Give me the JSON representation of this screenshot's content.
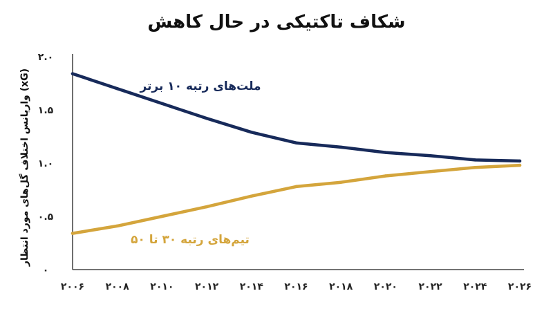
{
  "chart_data": {
    "type": "line",
    "title": "شکاف تاکتیکی در حال کاهش",
    "xlabel": "",
    "ylabel": "واریانس اختلاف گل‌های مورد انتظار (xG)",
    "x": [
      2006,
      2008,
      2010,
      2012,
      2014,
      2016,
      2018,
      2020,
      2022,
      2024,
      2026
    ],
    "x_tick_labels": [
      "۲۰۰۶",
      "۲۰۰۸",
      "۲۰۱۰",
      "۲۰۱۲",
      "۲۰۱۴",
      "۲۰۱۶",
      "۲۰۱۸",
      "۲۰۲۰",
      "۲۰۲۲",
      "۲۰۲۴",
      "۲۰۲۶"
    ],
    "y_ticks": [
      0,
      0.5,
      1.0,
      1.5,
      2.0
    ],
    "y_tick_labels": [
      "۰",
      "۰.۵",
      "۱.۰",
      "۱.۵",
      "۲.۰"
    ],
    "xlim": [
      2006,
      2026
    ],
    "ylim": [
      0,
      2.0
    ],
    "grid": false,
    "legend": "inline",
    "series": [
      {
        "name": "ملت‌های رتبه ۱۰ برتر",
        "color": "#172a5a",
        "values": [
          1.84,
          1.7,
          1.56,
          1.42,
          1.29,
          1.19,
          1.15,
          1.1,
          1.07,
          1.03,
          1.02
        ]
      },
      {
        "name": "تیم‌های رتبه ۳۰ تا ۵۰",
        "color": "#d4a53c",
        "values": [
          0.34,
          0.41,
          0.5,
          0.59,
          0.69,
          0.78,
          0.82,
          0.88,
          0.92,
          0.96,
          0.98
        ]
      }
    ]
  }
}
